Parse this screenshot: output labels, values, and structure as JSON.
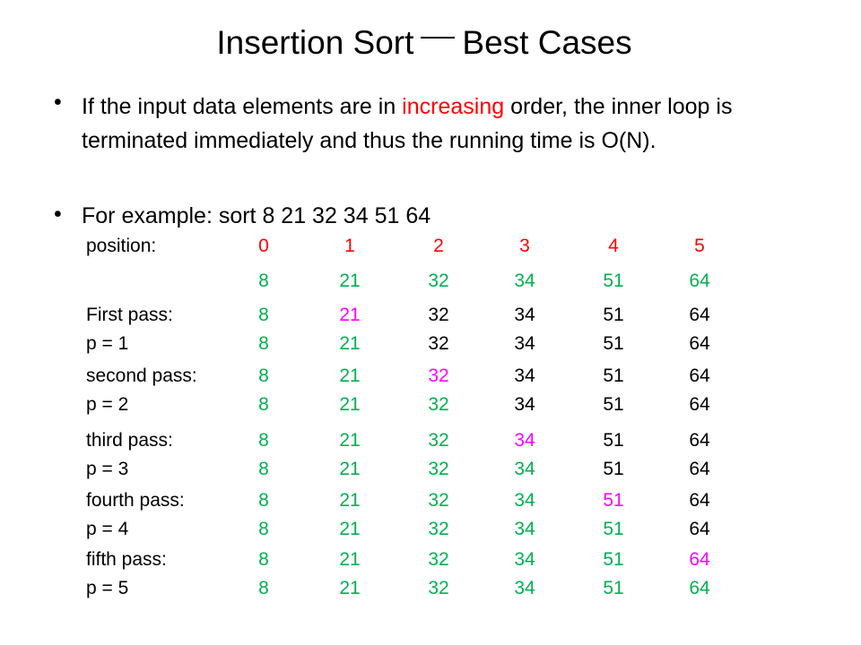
{
  "title": {
    "left": "Insertion Sort",
    "right": "Best Cases"
  },
  "bullets": [
    {
      "prefix": "If the input data elements are in ",
      "highlight": "increasing",
      "suffix": " order, the inner loop is terminated immediately and thus the running time is O(N)."
    },
    {
      "text": "For example: sort 8 21 32 34 51 64"
    }
  ],
  "colors": {
    "position": "#ff0000",
    "normal": "#00b050",
    "current": "#ff00ff",
    "plain": "#000000"
  },
  "table": {
    "position_label": "position:",
    "positions": [
      "0",
      "1",
      "2",
      "3",
      "4",
      "5"
    ],
    "initial": [
      "8",
      "21",
      "32",
      "34",
      "51",
      "64"
    ],
    "passes": [
      {
        "label": "First pass:",
        "values": [
          "8",
          "21",
          "32",
          "34",
          "51",
          "64"
        ],
        "highlight_index": 1,
        "p_label": "p = 1",
        "p_values": [
          "8",
          "21",
          "32",
          "34",
          "51",
          "64"
        ],
        "p_green_count": 2
      },
      {
        "label": "second pass:",
        "values": [
          "8",
          "21",
          "32",
          "34",
          "51",
          "64"
        ],
        "highlight_index": 2,
        "p_label": "p = 2",
        "p_values": [
          "8",
          "21",
          "32",
          "34",
          "51",
          "64"
        ],
        "p_green_count": 3
      },
      {
        "label": "third pass:",
        "values": [
          "8",
          "21",
          "32",
          "34",
          "51",
          "64"
        ],
        "highlight_index": 3,
        "p_label": "p = 3",
        "p_values": [
          "8",
          "21",
          "32",
          "34",
          "51",
          "64"
        ],
        "p_green_count": 4
      },
      {
        "label": "fourth pass:",
        "values": [
          "8",
          "21",
          "32",
          "34",
          "51",
          "64"
        ],
        "highlight_index": 4,
        "p_label": "p = 4",
        "p_values": [
          "8",
          "21",
          "32",
          "34",
          "51",
          "64"
        ],
        "p_green_count": 5
      },
      {
        "label": "fifth pass:",
        "values": [
          "8",
          "21",
          "32",
          "34",
          "51",
          "64"
        ],
        "highlight_index": 5,
        "p_label": "p = 5",
        "p_values": [
          "8",
          "21",
          "32",
          "34",
          "51",
          "64"
        ],
        "p_green_count": 6
      }
    ]
  }
}
